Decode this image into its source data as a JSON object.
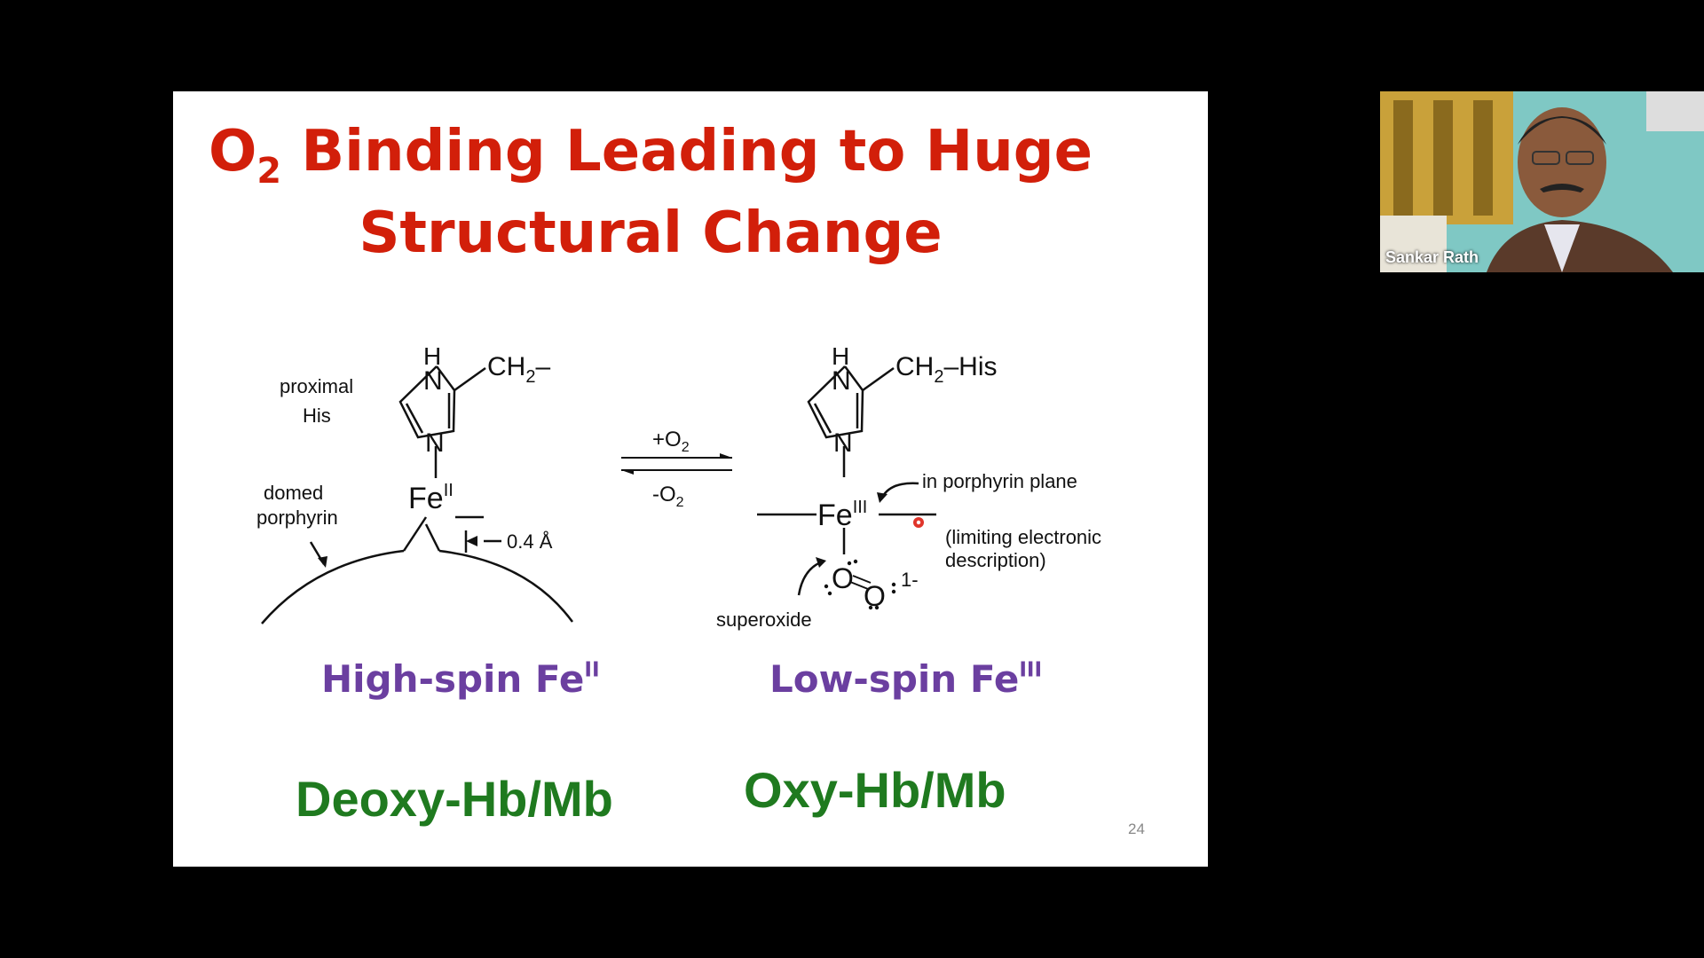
{
  "slide": {
    "title_line1_prefix": "O",
    "title_line1_sub": "2",
    "title_line1_rest": " Binding Leading to Huge",
    "title_line2": "Structural Change",
    "diagram": {
      "deoxy": {
        "h": "H",
        "n_top": "N",
        "n_bottom": "N",
        "ch2": "CH",
        "ch2_sub": "2",
        "ch2_tail": "–",
        "fe": "Fe",
        "fe_ox": "II",
        "proximal": "proximal",
        "his": "His",
        "domed": "domed",
        "porphyrin": "porphyrin",
        "distance": "0.4 Å"
      },
      "arrow": {
        "forward": "+O",
        "forward_sub": "2",
        "reverse": "-O",
        "reverse_sub": "2"
      },
      "oxy": {
        "h": "H",
        "n_top": "N",
        "n_bottom": "N",
        "ch2": "CH",
        "ch2_sub": "2",
        "ch2_tail": "–His",
        "fe": "Fe",
        "fe_ox": "III",
        "in_plane": "in porphyrin plane",
        "limiting1": "(limiting electronic",
        "limiting2": "description)",
        "o1": "O",
        "o2": "O",
        "charge": "1-",
        "superoxide": "superoxide"
      }
    },
    "high_spin_text": "High-spin Fe",
    "high_spin_sup": "II",
    "low_spin_text": "Low-spin Fe",
    "low_spin_sup": "III",
    "deoxy_label": "Deoxy-Hb/Mb",
    "oxy_label": "Oxy-Hb/Mb",
    "page_number": "24"
  },
  "video": {
    "presenter_name": "Sankar Rath"
  },
  "colors": {
    "title": "#d21f0a",
    "spin_labels": "#6b3fa0",
    "state_labels": "#1f7a1f",
    "laser_pointer": "#e0352b"
  }
}
